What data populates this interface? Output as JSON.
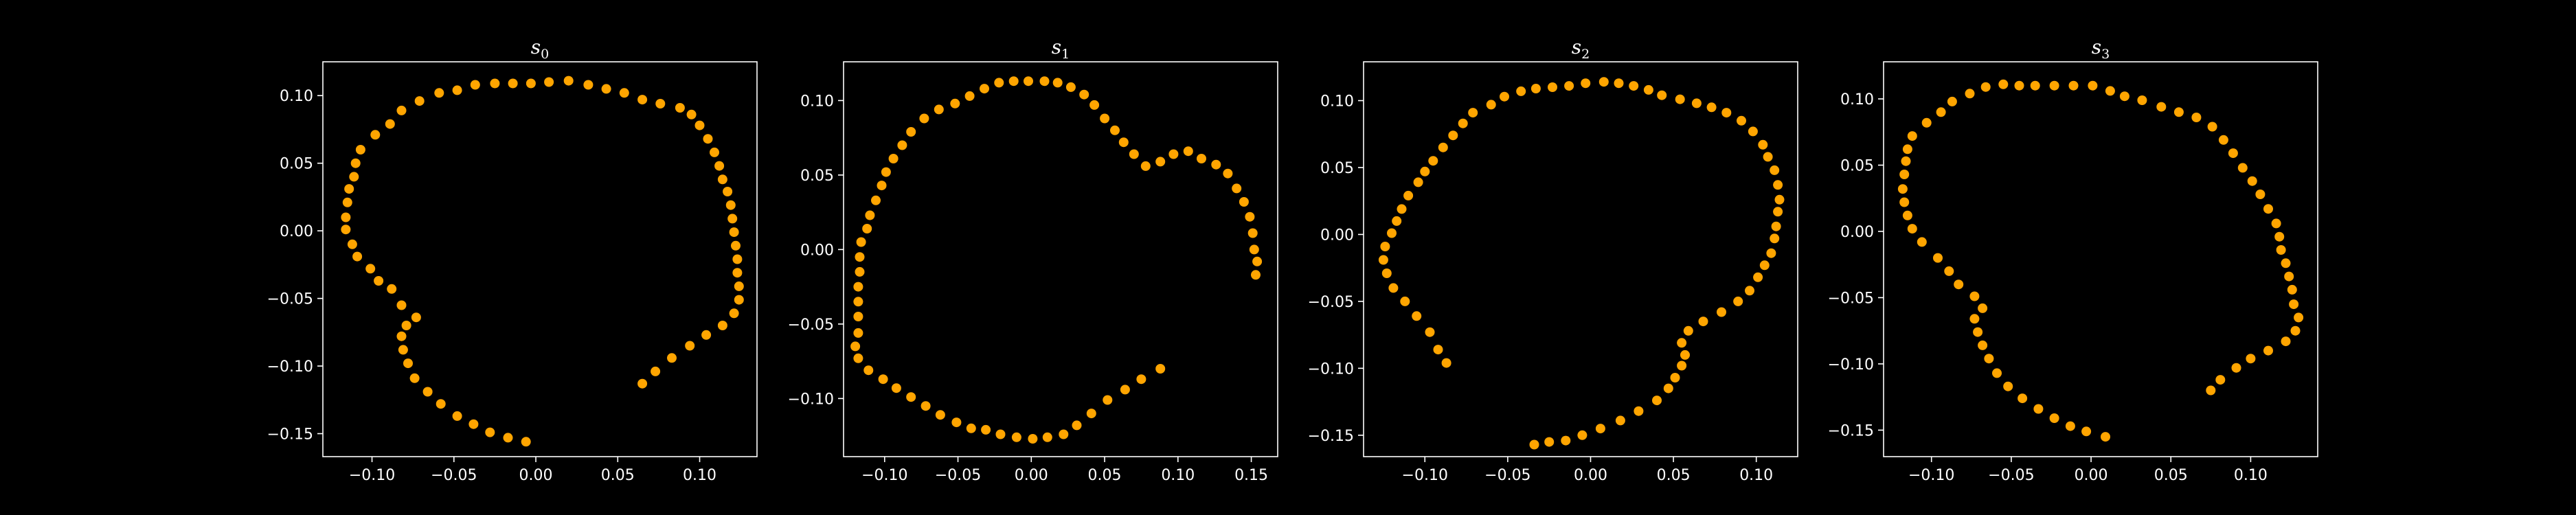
{
  "figure": {
    "background": "#000000",
    "axes_color": "#ffffff",
    "marker_color": "#ffa500"
  },
  "chart_data": [
    {
      "type": "scatter",
      "title_base": "s",
      "title_sub": "0",
      "xlim": [
        -0.13,
        0.135
      ],
      "ylim": [
        -0.167,
        0.125
      ],
      "xticks": [
        -0.1,
        -0.05,
        0.0,
        0.05,
        0.1
      ],
      "xtick_labels": [
        "−0.10",
        "−0.05",
        "0.00",
        "0.05",
        "0.10"
      ],
      "yticks": [
        -0.15,
        -0.1,
        -0.05,
        0.0,
        0.05,
        0.1
      ],
      "ytick_labels": [
        "−0.15",
        "−0.10",
        "−0.05",
        "0.00",
        "0.05",
        "0.10"
      ],
      "grid": false,
      "points": [
        [
          -0.006,
          -0.156
        ],
        [
          -0.017,
          -0.153
        ],
        [
          -0.028,
          -0.149
        ],
        [
          -0.038,
          -0.143
        ],
        [
          -0.048,
          -0.137
        ],
        [
          -0.058,
          -0.128
        ],
        [
          -0.066,
          -0.119
        ],
        [
          -0.074,
          -0.109
        ],
        [
          -0.078,
          -0.098
        ],
        [
          -0.081,
          -0.088
        ],
        [
          -0.082,
          -0.078
        ],
        [
          -0.079,
          -0.07
        ],
        [
          -0.073,
          -0.064
        ],
        [
          -0.082,
          -0.055
        ],
        [
          -0.088,
          -0.043
        ],
        [
          -0.096,
          -0.037
        ],
        [
          -0.101,
          -0.028
        ],
        [
          -0.109,
          -0.019
        ],
        [
          -0.112,
          -0.01
        ],
        [
          -0.116,
          0.001
        ],
        [
          -0.116,
          0.01
        ],
        [
          -0.115,
          0.021
        ],
        [
          -0.114,
          0.031
        ],
        [
          -0.111,
          0.04
        ],
        [
          -0.11,
          0.05
        ],
        [
          -0.107,
          0.06
        ],
        [
          -0.098,
          0.071
        ],
        [
          -0.089,
          0.079
        ],
        [
          -0.082,
          0.089
        ],
        [
          -0.071,
          0.096
        ],
        [
          -0.059,
          0.102
        ],
        [
          -0.048,
          0.104
        ],
        [
          -0.037,
          0.108
        ],
        [
          -0.025,
          0.109
        ],
        [
          -0.014,
          0.109
        ],
        [
          -0.003,
          0.109
        ],
        [
          0.008,
          0.11
        ],
        [
          0.02,
          0.111
        ],
        [
          0.032,
          0.108
        ],
        [
          0.043,
          0.105
        ],
        [
          0.054,
          0.102
        ],
        [
          0.065,
          0.097
        ],
        [
          0.076,
          0.094
        ],
        [
          0.088,
          0.091
        ],
        [
          0.095,
          0.086
        ],
        [
          0.1,
          0.078
        ],
        [
          0.105,
          0.068
        ],
        [
          0.109,
          0.058
        ],
        [
          0.112,
          0.048
        ],
        [
          0.114,
          0.038
        ],
        [
          0.117,
          0.029
        ],
        [
          0.119,
          0.019
        ],
        [
          0.12,
          0.009
        ],
        [
          0.121,
          -0.001
        ],
        [
          0.122,
          -0.011
        ],
        [
          0.123,
          -0.021
        ],
        [
          0.123,
          -0.031
        ],
        [
          0.124,
          -0.041
        ],
        [
          0.124,
          -0.051
        ],
        [
          0.121,
          -0.061
        ],
        [
          0.114,
          -0.07
        ],
        [
          0.104,
          -0.077
        ],
        [
          0.094,
          -0.085
        ],
        [
          0.083,
          -0.094
        ],
        [
          0.073,
          -0.104
        ],
        [
          0.065,
          -0.113
        ]
      ]
    },
    {
      "type": "scatter",
      "title_base": "s",
      "title_sub": "1",
      "xlim": [
        -0.128,
        0.168
      ],
      "ylim": [
        -0.139,
        0.126
      ],
      "xticks": [
        -0.1,
        -0.05,
        0.0,
        0.05,
        0.1,
        0.15
      ],
      "xtick_labels": [
        "−0.10",
        "−0.05",
        "0.00",
        "0.05",
        "0.10",
        "0.15"
      ],
      "yticks": [
        -0.1,
        -0.05,
        0.0,
        0.05,
        0.1
      ],
      "ytick_labels": [
        "−0.10",
        "−0.05",
        "0.00",
        "0.05",
        "0.10"
      ],
      "grid": false,
      "points": [
        [
          0.088,
          -0.08
        ],
        [
          0.075,
          -0.087
        ],
        [
          0.064,
          -0.094
        ],
        [
          0.052,
          -0.101
        ],
        [
          0.041,
          -0.11
        ],
        [
          0.031,
          -0.118
        ],
        [
          0.022,
          -0.124
        ],
        [
          0.011,
          -0.126
        ],
        [
          0.001,
          -0.127
        ],
        [
          -0.01,
          -0.126
        ],
        [
          -0.021,
          -0.124
        ],
        [
          -0.031,
          -0.121
        ],
        [
          -0.041,
          -0.12
        ],
        [
          -0.051,
          -0.116
        ],
        [
          -0.062,
          -0.111
        ],
        [
          -0.072,
          -0.105
        ],
        [
          -0.082,
          -0.099
        ],
        [
          -0.092,
          -0.093
        ],
        [
          -0.101,
          -0.087
        ],
        [
          -0.111,
          -0.081
        ],
        [
          -0.118,
          -0.073
        ],
        [
          -0.12,
          -0.065
        ],
        [
          -0.118,
          -0.056
        ],
        [
          -0.118,
          -0.045
        ],
        [
          -0.118,
          -0.035
        ],
        [
          -0.118,
          -0.025
        ],
        [
          -0.117,
          -0.015
        ],
        [
          -0.117,
          -0.005
        ],
        [
          -0.116,
          0.005
        ],
        [
          -0.112,
          0.014
        ],
        [
          -0.11,
          0.023
        ],
        [
          -0.106,
          0.033
        ],
        [
          -0.102,
          0.043
        ],
        [
          -0.099,
          0.052
        ],
        [
          -0.094,
          0.061
        ],
        [
          -0.088,
          0.07
        ],
        [
          -0.082,
          0.079
        ],
        [
          -0.073,
          0.088
        ],
        [
          -0.063,
          0.094
        ],
        [
          -0.052,
          0.098
        ],
        [
          -0.042,
          0.103
        ],
        [
          -0.032,
          0.108
        ],
        [
          -0.022,
          0.112
        ],
        [
          -0.012,
          0.113
        ],
        [
          -0.002,
          0.113
        ],
        [
          0.009,
          0.113
        ],
        [
          0.018,
          0.112
        ],
        [
          0.027,
          0.109
        ],
        [
          0.036,
          0.104
        ],
        [
          0.043,
          0.097
        ],
        [
          0.05,
          0.088
        ],
        [
          0.057,
          0.08
        ],
        [
          0.063,
          0.072
        ],
        [
          0.07,
          0.064
        ],
        [
          0.078,
          0.056
        ],
        [
          0.088,
          0.059
        ],
        [
          0.097,
          0.064
        ],
        [
          0.107,
          0.066
        ],
        [
          0.116,
          0.061
        ],
        [
          0.126,
          0.057
        ],
        [
          0.134,
          0.051
        ],
        [
          0.14,
          0.041
        ],
        [
          0.145,
          0.032
        ],
        [
          0.149,
          0.022
        ],
        [
          0.151,
          0.011
        ],
        [
          0.152,
          0.0
        ],
        [
          0.154,
          -0.008
        ],
        [
          0.153,
          -0.017
        ]
      ]
    },
    {
      "type": "scatter",
      "title_base": "s",
      "title_sub": "2",
      "xlim": [
        -0.137,
        0.125
      ],
      "ylim": [
        -0.166,
        0.129
      ],
      "xticks": [
        -0.1,
        -0.05,
        0.0,
        0.05,
        0.1
      ],
      "xtick_labels": [
        "−0.10",
        "−0.05",
        "0.00",
        "0.05",
        "0.10"
      ],
      "yticks": [
        -0.15,
        -0.1,
        -0.05,
        0.0,
        0.05,
        0.1
      ],
      "ytick_labels": [
        "−0.15",
        "−0.10",
        "−0.05",
        "0.00",
        "0.05",
        "0.10"
      ],
      "grid": false,
      "points": [
        [
          -0.087,
          -0.096
        ],
        [
          -0.092,
          -0.086
        ],
        [
          -0.097,
          -0.073
        ],
        [
          -0.105,
          -0.061
        ],
        [
          -0.112,
          -0.05
        ],
        [
          -0.119,
          -0.04
        ],
        [
          -0.123,
          -0.029
        ],
        [
          -0.125,
          -0.019
        ],
        [
          -0.124,
          -0.009
        ],
        [
          -0.12,
          0.001
        ],
        [
          -0.117,
          0.01
        ],
        [
          -0.114,
          0.019
        ],
        [
          -0.11,
          0.029
        ],
        [
          -0.104,
          0.039
        ],
        [
          -0.1,
          0.047
        ],
        [
          -0.095,
          0.055
        ],
        [
          -0.089,
          0.065
        ],
        [
          -0.083,
          0.074
        ],
        [
          -0.077,
          0.083
        ],
        [
          -0.071,
          0.091
        ],
        [
          -0.06,
          0.097
        ],
        [
          -0.052,
          0.103
        ],
        [
          -0.042,
          0.107
        ],
        [
          -0.033,
          0.109
        ],
        [
          -0.023,
          0.11
        ],
        [
          -0.013,
          0.111
        ],
        [
          -0.003,
          0.113
        ],
        [
          0.008,
          0.114
        ],
        [
          0.017,
          0.113
        ],
        [
          0.026,
          0.111
        ],
        [
          0.035,
          0.108
        ],
        [
          0.043,
          0.104
        ],
        [
          0.054,
          0.101
        ],
        [
          0.064,
          0.098
        ],
        [
          0.073,
          0.095
        ],
        [
          0.082,
          0.091
        ],
        [
          0.091,
          0.085
        ],
        [
          0.098,
          0.077
        ],
        [
          0.104,
          0.067
        ],
        [
          0.107,
          0.058
        ],
        [
          0.111,
          0.048
        ],
        [
          0.113,
          0.037
        ],
        [
          0.114,
          0.026
        ],
        [
          0.113,
          0.017
        ],
        [
          0.112,
          0.006
        ],
        [
          0.111,
          -0.003
        ],
        [
          0.109,
          -0.014
        ],
        [
          0.105,
          -0.023
        ],
        [
          0.101,
          -0.032
        ],
        [
          0.096,
          -0.042
        ],
        [
          0.089,
          -0.05
        ],
        [
          0.079,
          -0.058
        ],
        [
          0.068,
          -0.065
        ],
        [
          0.059,
          -0.072
        ],
        [
          0.055,
          -0.081
        ],
        [
          0.057,
          -0.09
        ],
        [
          0.055,
          -0.098
        ],
        [
          0.051,
          -0.107
        ],
        [
          0.047,
          -0.115
        ],
        [
          0.04,
          -0.124
        ],
        [
          0.029,
          -0.132
        ],
        [
          0.018,
          -0.139
        ],
        [
          0.006,
          -0.145
        ],
        [
          -0.005,
          -0.15
        ],
        [
          -0.015,
          -0.154
        ],
        [
          -0.025,
          -0.155
        ],
        [
          -0.034,
          -0.157
        ]
      ]
    },
    {
      "type": "scatter",
      "title_base": "s",
      "title_sub": "3",
      "xlim": [
        -0.13,
        0.142
      ],
      "ylim": [
        -0.17,
        0.128
      ],
      "xticks": [
        -0.1,
        -0.05,
        0.0,
        0.05,
        0.1
      ],
      "xtick_labels": [
        "−0.10",
        "−0.05",
        "0.00",
        "0.05",
        "0.10"
      ],
      "yticks": [
        -0.15,
        -0.1,
        -0.05,
        0.0,
        0.05,
        0.1
      ],
      "ytick_labels": [
        "−0.15",
        "−0.10",
        "−0.05",
        "0.00",
        "0.05",
        "0.10"
      ],
      "grid": false,
      "points": [
        [
          0.009,
          -0.155
        ],
        [
          -0.003,
          -0.151
        ],
        [
          -0.013,
          -0.147
        ],
        [
          -0.023,
          -0.141
        ],
        [
          -0.033,
          -0.134
        ],
        [
          -0.043,
          -0.126
        ],
        [
          -0.052,
          -0.117
        ],
        [
          -0.059,
          -0.107
        ],
        [
          -0.064,
          -0.096
        ],
        [
          -0.068,
          -0.086
        ],
        [
          -0.071,
          -0.076
        ],
        [
          -0.073,
          -0.066
        ],
        [
          -0.068,
          -0.058
        ],
        [
          -0.073,
          -0.049
        ],
        [
          -0.083,
          -0.04
        ],
        [
          -0.089,
          -0.03
        ],
        [
          -0.096,
          -0.02
        ],
        [
          -0.106,
          -0.008
        ],
        [
          -0.112,
          0.002
        ],
        [
          -0.115,
          0.012
        ],
        [
          -0.117,
          0.022
        ],
        [
          -0.118,
          0.032
        ],
        [
          -0.117,
          0.043
        ],
        [
          -0.116,
          0.053
        ],
        [
          -0.115,
          0.062
        ],
        [
          -0.112,
          0.072
        ],
        [
          -0.103,
          0.082
        ],
        [
          -0.094,
          0.09
        ],
        [
          -0.087,
          0.098
        ],
        [
          -0.076,
          0.104
        ],
        [
          -0.066,
          0.109
        ],
        [
          -0.055,
          0.111
        ],
        [
          -0.045,
          0.11
        ],
        [
          -0.035,
          0.11
        ],
        [
          -0.023,
          0.11
        ],
        [
          -0.011,
          0.11
        ],
        [
          0.001,
          0.11
        ],
        [
          0.012,
          0.106
        ],
        [
          0.021,
          0.102
        ],
        [
          0.032,
          0.099
        ],
        [
          0.044,
          0.094
        ],
        [
          0.055,
          0.09
        ],
        [
          0.066,
          0.086
        ],
        [
          0.076,
          0.079
        ],
        [
          0.083,
          0.069
        ],
        [
          0.089,
          0.059
        ],
        [
          0.095,
          0.048
        ],
        [
          0.101,
          0.038
        ],
        [
          0.106,
          0.028
        ],
        [
          0.111,
          0.017
        ],
        [
          0.116,
          0.006
        ],
        [
          0.118,
          -0.004
        ],
        [
          0.119,
          -0.014
        ],
        [
          0.122,
          -0.024
        ],
        [
          0.124,
          -0.034
        ],
        [
          0.126,
          -0.044
        ],
        [
          0.127,
          -0.055
        ],
        [
          0.13,
          -0.065
        ],
        [
          0.128,
          -0.075
        ],
        [
          0.122,
          -0.083
        ],
        [
          0.111,
          -0.09
        ],
        [
          0.1,
          -0.096
        ],
        [
          0.091,
          -0.103
        ],
        [
          0.081,
          -0.112
        ],
        [
          0.075,
          -0.12
        ]
      ]
    }
  ]
}
